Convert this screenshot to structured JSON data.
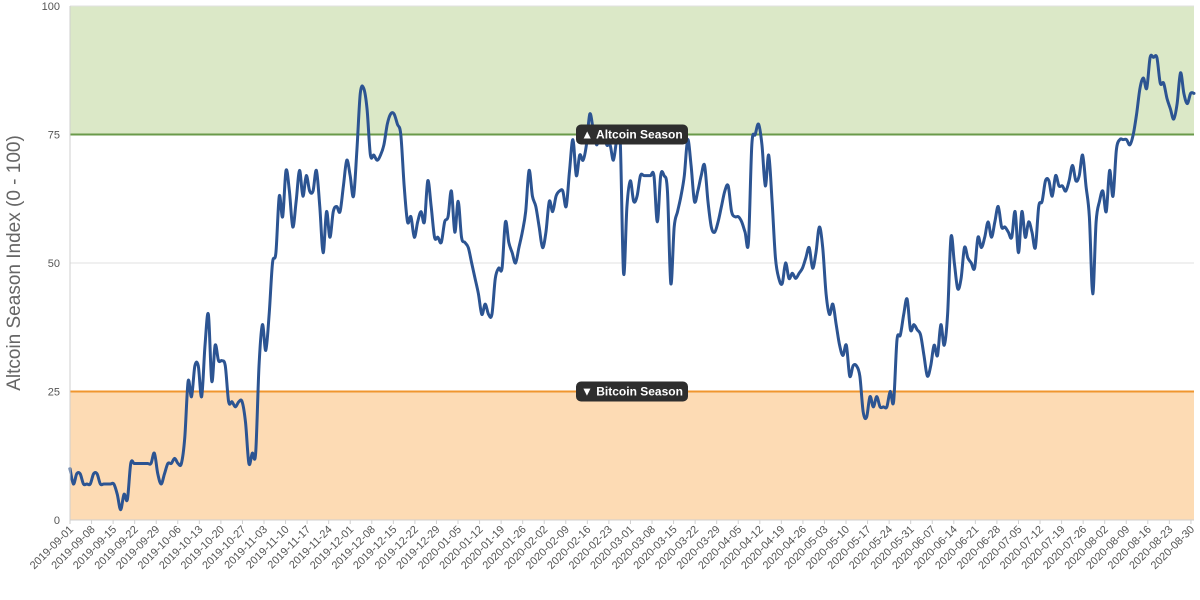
{
  "chart_data": {
    "type": "line",
    "title": "",
    "xlabel": "",
    "ylabel": "Altcoin Season Index (0 - 100)",
    "ylim": [
      0,
      100
    ],
    "yticks": [
      0,
      25,
      50,
      75,
      100
    ],
    "grid": true,
    "x_start": "2019-09-01",
    "x_end": "2020-08-31",
    "xtick_labels": [
      "2019-09-01",
      "2019-09-08",
      "2019-09-15",
      "2019-09-22",
      "2019-09-29",
      "2019-10-06",
      "2019-10-13",
      "2019-10-20",
      "2019-10-27",
      "2019-11-03",
      "2019-11-10",
      "2019-11-17",
      "2019-11-24",
      "2019-12-01",
      "2019-12-08",
      "2019-12-15",
      "2019-12-22",
      "2019-12-29",
      "2020-01-05",
      "2020-01-12",
      "2020-01-19",
      "2020-01-26",
      "2020-02-02",
      "2020-02-09",
      "2020-02-16",
      "2020-02-23",
      "2020-03-01",
      "2020-03-08",
      "2020-03-15",
      "2020-03-22",
      "2020-03-29",
      "2020-04-05",
      "2020-04-12",
      "2020-04-19",
      "2020-04-26",
      "2020-05-03",
      "2020-05-10",
      "2020-05-17",
      "2020-05-24",
      "2020-05-31",
      "2020-06-07",
      "2020-06-14",
      "2020-06-21",
      "2020-06-28",
      "2020-07-05",
      "2020-07-12",
      "2020-07-19",
      "2020-07-26",
      "2020-08-02",
      "2020-08-09",
      "2020-08-16",
      "2020-08-23",
      "2020-08-30"
    ],
    "bands": [
      {
        "name": "altcoin-season-zone",
        "from": 75,
        "to": 100,
        "color": "#dbe8c7"
      },
      {
        "name": "bitcoin-season-zone",
        "from": 0,
        "to": 25,
        "color": "#fddbb4"
      }
    ],
    "thresholds": [
      {
        "name": "altcoin-season",
        "value": 75,
        "label": "▲ Altcoin Season",
        "color": "#6a9a4a"
      },
      {
        "name": "bitcoin-season",
        "value": 25,
        "label": "▼ Bitcoin Season",
        "color": "#f0962e"
      }
    ],
    "series": [
      {
        "name": "Altcoin Season Index",
        "color": "#2c5492",
        "values": [
          10,
          7,
          9,
          9,
          7,
          7,
          7,
          9,
          9,
          7,
          7,
          7,
          7,
          7,
          5,
          2,
          5,
          4,
          11,
          11,
          11,
          11,
          11,
          11,
          11,
          13,
          9,
          7,
          9,
          11,
          11,
          12,
          11,
          11,
          16,
          27,
          24,
          30,
          30,
          24,
          34,
          40,
          27,
          34,
          31,
          31,
          30,
          23,
          23,
          22,
          23,
          23,
          19,
          11,
          13,
          13,
          30,
          38,
          33,
          40,
          50,
          52,
          63,
          59,
          68,
          64,
          57,
          62,
          68,
          63,
          67,
          64,
          64,
          68,
          61,
          52,
          60,
          55,
          60,
          61,
          60,
          65,
          70,
          67,
          63,
          72,
          83,
          84,
          80,
          71,
          71,
          70,
          71,
          73,
          77,
          79,
          79,
          77,
          75,
          65,
          58,
          59,
          55,
          58,
          60,
          58,
          66,
          61,
          55,
          55,
          54,
          58,
          59,
          64,
          56,
          62,
          55,
          54,
          53,
          50,
          47,
          44,
          40,
          42,
          40,
          40,
          47,
          49,
          49,
          58,
          54,
          52,
          50,
          53,
          56,
          60,
          68,
          63,
          61,
          57,
          53,
          56,
          62,
          60,
          63,
          64,
          64,
          61,
          68,
          74,
          67,
          71,
          70,
          73,
          79,
          76,
          73,
          75,
          76,
          73,
          73,
          70,
          74,
          74,
          48,
          61,
          66,
          62,
          63,
          67,
          67,
          67,
          67,
          67,
          58,
          67,
          67,
          64,
          46,
          57,
          60,
          63,
          67,
          74,
          69,
          62,
          64,
          67,
          69,
          62,
          57,
          56,
          58,
          61,
          64,
          65,
          60,
          59,
          59,
          58,
          56,
          54,
          73,
          75,
          77,
          73,
          65,
          71,
          62,
          51,
          47,
          46,
          50,
          47,
          48,
          47,
          48,
          49,
          51,
          53,
          49,
          52,
          57,
          53,
          44,
          40,
          42,
          38,
          34,
          32,
          34,
          28,
          30,
          30,
          28,
          21,
          20,
          24,
          22,
          24,
          22,
          22,
          22,
          25,
          23,
          35,
          36,
          40,
          43,
          37,
          38,
          37,
          36,
          32,
          28,
          30,
          34,
          32,
          38,
          34,
          40,
          55,
          50,
          45,
          47,
          53,
          51,
          50,
          49,
          55,
          53,
          55,
          58,
          55,
          58,
          61,
          57,
          57,
          56,
          55,
          60,
          52,
          60,
          55,
          58,
          56,
          53,
          61,
          62,
          66,
          66,
          63,
          67,
          65,
          65,
          64,
          66,
          69,
          66,
          67,
          71,
          65,
          59,
          44,
          58,
          62,
          64,
          60,
          68,
          63,
          72,
          74,
          74,
          74,
          73,
          75,
          79,
          84,
          86,
          84,
          90,
          90,
          90,
          85,
          85,
          82,
          80,
          78,
          81,
          87,
          83,
          81,
          83,
          83
        ]
      }
    ]
  }
}
